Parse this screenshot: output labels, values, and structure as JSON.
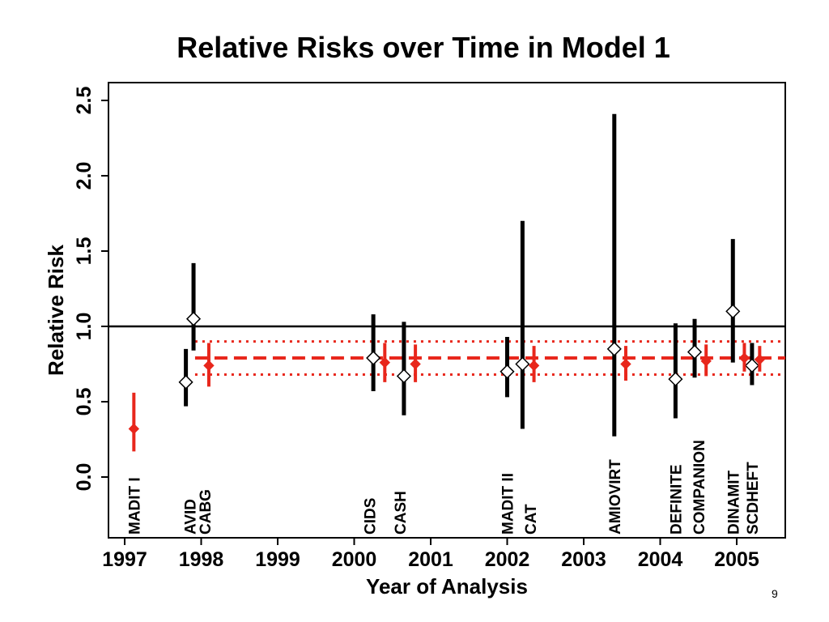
{
  "title": "Relative Risks over Time in Model 1",
  "page_number": "9",
  "chart_data": {
    "type": "scatter",
    "xlabel": "Year of Analysis",
    "ylabel": "Relative Risk",
    "xlim": [
      1996.8,
      2005.6
    ],
    "ylim": [
      -0.4,
      2.6
    ],
    "x_ticks": [
      1997,
      1998,
      1999,
      2000,
      2001,
      2002,
      2003,
      2004,
      2005
    ],
    "y_ticks": [
      0.0,
      0.5,
      1.0,
      1.5,
      2.0,
      2.5
    ],
    "y_tick_labels": [
      "0.0",
      "0.5",
      "1.0",
      "1.5",
      "2.0",
      "2.5"
    ],
    "grid": false,
    "reference_line": 1.0,
    "pooled_estimate": {
      "value": 0.79,
      "ci": [
        0.68,
        0.9
      ]
    },
    "series": [
      {
        "marker": "open-diamond",
        "color": "#000000",
        "points": [
          {
            "x": 1997.8,
            "y": 0.63,
            "lo": 0.47,
            "hi": 0.85
          },
          {
            "x": 1997.9,
            "y": 1.05,
            "lo": 0.84,
            "hi": 1.42
          },
          {
            "x": 2000.25,
            "y": 0.79,
            "lo": 0.57,
            "hi": 1.08
          },
          {
            "x": 2000.65,
            "y": 0.67,
            "lo": 0.41,
            "hi": 1.03
          },
          {
            "x": 2002.0,
            "y": 0.7,
            "lo": 0.53,
            "hi": 0.93
          },
          {
            "x": 2002.2,
            "y": 0.75,
            "lo": 0.32,
            "hi": 1.7
          },
          {
            "x": 2003.4,
            "y": 0.85,
            "lo": 0.27,
            "hi": 2.41
          },
          {
            "x": 2004.2,
            "y": 0.65,
            "lo": 0.39,
            "hi": 1.02
          },
          {
            "x": 2004.45,
            "y": 0.83,
            "lo": 0.66,
            "hi": 1.05
          },
          {
            "x": 2004.95,
            "y": 1.1,
            "lo": 0.76,
            "hi": 1.58
          },
          {
            "x": 2005.2,
            "y": 0.74,
            "lo": 0.61,
            "hi": 0.89
          }
        ]
      },
      {
        "marker": "filled-diamond",
        "color": "#e8271c",
        "points": [
          {
            "x": 1997.12,
            "y": 0.32,
            "lo": 0.17,
            "hi": 0.56
          },
          {
            "x": 1998.1,
            "y": 0.74,
            "lo": 0.6,
            "hi": 0.89
          },
          {
            "x": 2000.4,
            "y": 0.76,
            "lo": 0.63,
            "hi": 0.89
          },
          {
            "x": 2000.8,
            "y": 0.75,
            "lo": 0.63,
            "hi": 0.88
          },
          {
            "x": 2002.35,
            "y": 0.74,
            "lo": 0.63,
            "hi": 0.87
          },
          {
            "x": 2003.55,
            "y": 0.75,
            "lo": 0.64,
            "hi": 0.87
          },
          {
            "x": 2004.6,
            "y": 0.77,
            "lo": 0.67,
            "hi": 0.88
          },
          {
            "x": 2005.1,
            "y": 0.79,
            "lo": 0.7,
            "hi": 0.89
          },
          {
            "x": 2005.3,
            "y": 0.78,
            "lo": 0.7,
            "hi": 0.87
          }
        ]
      }
    ],
    "trial_labels": [
      {
        "text": "MADIT I",
        "x": 1997.12
      },
      {
        "text": "AVID",
        "x": 1997.85
      },
      {
        "text": "CABG",
        "x": 1998.05
      },
      {
        "text": "CIDS",
        "x": 2000.2
      },
      {
        "text": "CASH",
        "x": 2000.6
      },
      {
        "text": "MADIT II",
        "x": 2002.0
      },
      {
        "text": "CAT",
        "x": 2002.3
      },
      {
        "text": "AMIOVIRT",
        "x": 2003.4
      },
      {
        "text": "DEFINITE",
        "x": 2004.2
      },
      {
        "text": "COMPANION",
        "x": 2004.5
      },
      {
        "text": "DINAMIT",
        "x": 2004.95
      },
      {
        "text": "SCDHEFT",
        "x": 2005.2
      }
    ]
  }
}
